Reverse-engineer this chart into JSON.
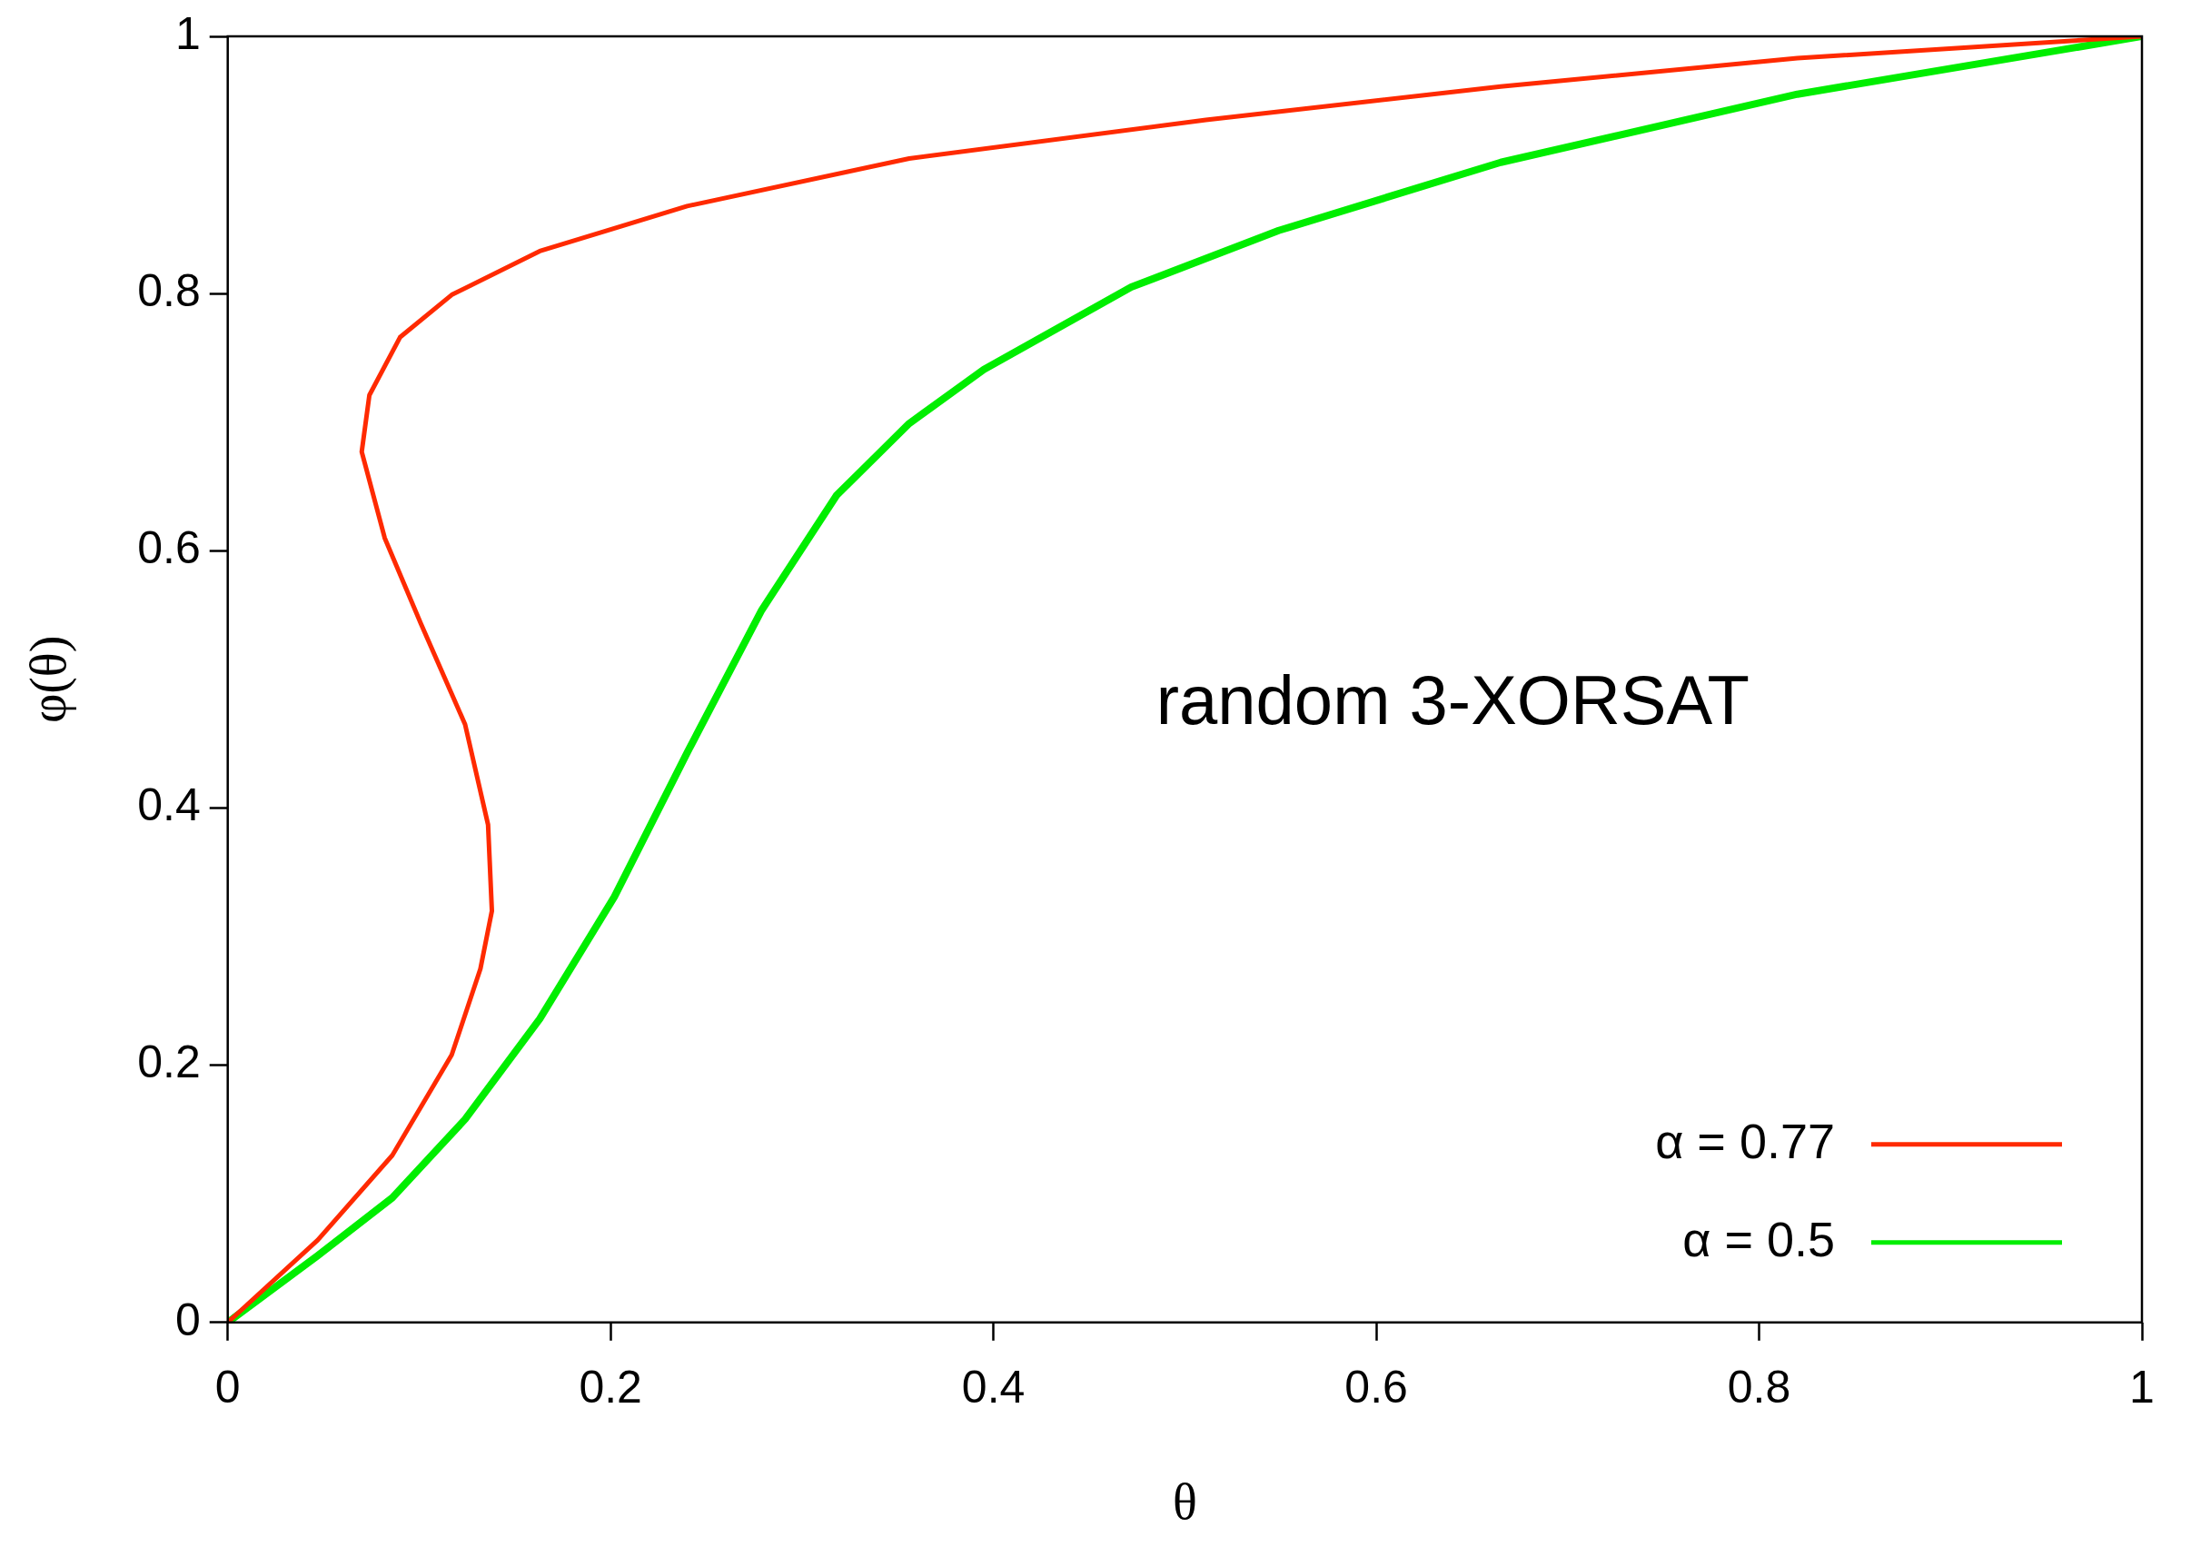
{
  "chart_data": {
    "type": "line",
    "xlabel": "θ",
    "ylabel": "φ(θ)",
    "xlim": [
      0,
      1
    ],
    "ylim": [
      0,
      1
    ],
    "xticks": [
      0,
      0.2,
      0.4,
      0.6,
      0.8,
      1
    ],
    "yticks": [
      0,
      0.2,
      0.4,
      0.6,
      0.8,
      1
    ],
    "grid": false,
    "legend": "bottom right",
    "marker": "none",
    "line_style": "solid",
    "annotations": [
      "random 3-XORSAT"
    ],
    "series": [
      {
        "name": "α = 0.77",
        "color": "#ff2a00",
        "x": [
          0,
          0.047,
          0.086,
          0.117,
          0.132,
          0.138,
          0.136,
          0.124,
          0.101,
          0.082,
          0.07,
          0.074,
          0.09,
          0.117,
          0.163,
          0.24,
          0.356,
          0.511,
          0.665,
          0.82,
          1
        ],
        "values": [
          0,
          0.064,
          0.13,
          0.208,
          0.275,
          0.32,
          0.387,
          0.465,
          0.543,
          0.61,
          0.677,
          0.721,
          0.766,
          0.799,
          0.833,
          0.868,
          0.905,
          0.935,
          0.961,
          0.983,
          1
        ]
      },
      {
        "name": "α = 0.5",
        "color": "#00ee00",
        "x": [
          0,
          0.047,
          0.086,
          0.124,
          0.163,
          0.202,
          0.24,
          0.279,
          0.318,
          0.356,
          0.395,
          0.472,
          0.549,
          0.665,
          0.82,
          1
        ],
        "values": [
          0,
          0.052,
          0.097,
          0.158,
          0.236,
          0.331,
          0.443,
          0.554,
          0.643,
          0.699,
          0.741,
          0.805,
          0.849,
          0.902,
          0.955,
          1
        ]
      }
    ]
  }
}
